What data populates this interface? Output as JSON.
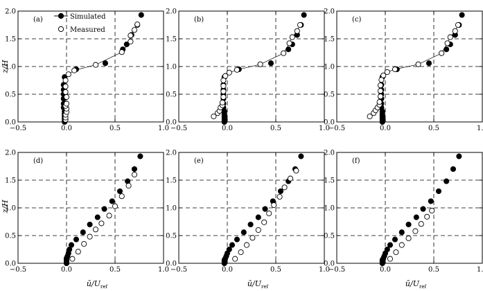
{
  "figure": {
    "ylabel": "z/H",
    "xlabel_main": "ū/U",
    "xlabel_sub": "ref",
    "legend": {
      "simulated": "Simulated",
      "measured": "Measured"
    }
  },
  "axes": {
    "xlim": [
      -0.5,
      1.0
    ],
    "ylim": [
      0.0,
      2.0
    ],
    "xticks": [
      -0.5,
      0.0,
      0.5,
      1.0
    ],
    "yticks": [
      0.0,
      0.5,
      1.0,
      1.5,
      2.0
    ],
    "xtick_labels": [
      "−0.5",
      "0.0",
      "0.5",
      "1.0"
    ],
    "ytick_labels": [
      "0.0",
      "0.5",
      "1.0",
      "1.5",
      "2.0"
    ],
    "grid": "dashed at x=0, x=0.5, y=0.5, y=1.0, y=1.5"
  },
  "chart_data": [
    {
      "type": "scatter",
      "panel": "(a)",
      "series": [
        {
          "name": "Simulated",
          "marker": "filled-circle",
          "line": "none",
          "x": [
            -0.02,
            -0.02,
            -0.02,
            -0.02,
            -0.02,
            -0.02,
            -0.02,
            -0.03,
            -0.03,
            -0.03,
            -0.03,
            -0.03,
            -0.03,
            -0.02,
            0.1,
            0.4,
            0.58,
            0.62,
            0.67,
            0.73,
            0.77
          ],
          "y": [
            0.0,
            0.03,
            0.06,
            0.09,
            0.12,
            0.15,
            0.19,
            0.26,
            0.33,
            0.42,
            0.5,
            0.58,
            0.67,
            0.81,
            0.95,
            1.06,
            1.31,
            1.4,
            1.57,
            1.75,
            1.93
          ]
        },
        {
          "name": "Measured",
          "marker": "open-circle",
          "line": "thin connecting line",
          "x": [
            -0.01,
            -0.01,
            -0.01,
            0.0,
            0.0,
            -0.01,
            0.0,
            0.0,
            -0.01,
            -0.01,
            -0.01,
            0.02,
            0.08,
            0.3,
            0.57,
            0.66,
            0.66,
            0.7,
            0.73
          ],
          "y": [
            0.04,
            0.08,
            0.13,
            0.18,
            0.24,
            0.29,
            0.33,
            0.45,
            0.54,
            0.64,
            0.75,
            0.86,
            0.93,
            1.03,
            1.26,
            1.45,
            1.56,
            1.66,
            1.76
          ]
        }
      ]
    },
    {
      "type": "scatter",
      "panel": "(b)",
      "series": [
        {
          "name": "Simulated",
          "marker": "filled-circle",
          "line": "none",
          "x": [
            -0.03,
            -0.03,
            -0.03,
            -0.03,
            -0.03,
            -0.03,
            -0.03,
            -0.04,
            -0.04,
            -0.04,
            -0.04,
            -0.04,
            -0.04,
            -0.03,
            0.12,
            0.45,
            0.63,
            0.67,
            0.72,
            0.76,
            0.79
          ],
          "y": [
            0.0,
            0.03,
            0.06,
            0.09,
            0.12,
            0.15,
            0.19,
            0.26,
            0.33,
            0.42,
            0.5,
            0.58,
            0.67,
            0.81,
            0.95,
            1.06,
            1.31,
            1.4,
            1.57,
            1.75,
            1.93
          ]
        },
        {
          "name": "Measured",
          "marker": "open-circle",
          "line": "thin connecting line",
          "x": [
            -0.14,
            -0.1,
            -0.08,
            -0.07,
            -0.05,
            -0.05,
            -0.04,
            -0.04,
            -0.04,
            -0.04,
            -0.02,
            0.02,
            0.1,
            0.34,
            0.58,
            0.64,
            0.67,
            0.72,
            0.75
          ],
          "y": [
            0.1,
            0.16,
            0.2,
            0.26,
            0.3,
            0.35,
            0.45,
            0.55,
            0.65,
            0.75,
            0.83,
            0.89,
            0.94,
            1.04,
            1.24,
            1.42,
            1.53,
            1.64,
            1.75
          ]
        }
      ]
    },
    {
      "type": "scatter",
      "panel": "(c)",
      "series": [
        {
          "name": "Simulated",
          "marker": "filled-circle",
          "line": "none",
          "x": [
            -0.03,
            -0.03,
            -0.03,
            -0.03,
            -0.03,
            -0.03,
            -0.03,
            -0.04,
            -0.04,
            -0.04,
            -0.04,
            -0.04,
            -0.04,
            -0.03,
            0.12,
            0.45,
            0.63,
            0.67,
            0.72,
            0.76,
            0.79
          ],
          "y": [
            0.0,
            0.03,
            0.06,
            0.09,
            0.12,
            0.15,
            0.19,
            0.26,
            0.33,
            0.42,
            0.5,
            0.58,
            0.67,
            0.81,
            0.95,
            1.06,
            1.31,
            1.4,
            1.57,
            1.75,
            1.93
          ]
        },
        {
          "name": "Measured",
          "marker": "open-circle",
          "line": "thin connecting line",
          "x": [
            -0.16,
            -0.12,
            -0.1,
            -0.08,
            -0.06,
            -0.06,
            -0.05,
            -0.05,
            -0.05,
            -0.04,
            -0.02,
            0.02,
            0.1,
            0.34,
            0.58,
            0.64,
            0.67,
            0.72,
            0.75
          ],
          "y": [
            0.1,
            0.16,
            0.21,
            0.26,
            0.31,
            0.36,
            0.46,
            0.56,
            0.66,
            0.76,
            0.84,
            0.9,
            0.95,
            1.04,
            1.24,
            1.42,
            1.53,
            1.64,
            1.75
          ]
        }
      ]
    },
    {
      "type": "scatter",
      "panel": "(d)",
      "series": [
        {
          "name": "Simulated",
          "marker": "filled-circle",
          "line": "none",
          "x": [
            0.0,
            0.0,
            0.0,
            0.0,
            0.01,
            0.02,
            0.03,
            0.05,
            0.1,
            0.17,
            0.24,
            0.32,
            0.39,
            0.47,
            0.55,
            0.63,
            0.7,
            0.76
          ],
          "y": [
            0.0,
            0.03,
            0.06,
            0.09,
            0.13,
            0.18,
            0.25,
            0.33,
            0.43,
            0.56,
            0.7,
            0.83,
            0.98,
            1.12,
            1.3,
            1.48,
            1.7,
            1.93
          ]
        },
        {
          "name": "Measured",
          "marker": "open-circle",
          "line": "none",
          "x": [
            0.06,
            0.12,
            0.18,
            0.24,
            0.3,
            0.36,
            0.44,
            0.5,
            0.57,
            0.64,
            0.7
          ],
          "y": [
            0.08,
            0.21,
            0.35,
            0.48,
            0.61,
            0.72,
            0.86,
            1.03,
            1.21,
            1.4,
            1.6
          ]
        }
      ]
    },
    {
      "type": "scatter",
      "panel": "(e)",
      "series": [
        {
          "name": "Simulated",
          "marker": "filled-circle",
          "line": "none",
          "x": [
            -0.03,
            -0.03,
            -0.03,
            -0.02,
            -0.01,
            0.0,
            0.02,
            0.05,
            0.1,
            0.17,
            0.24,
            0.32,
            0.39,
            0.47,
            0.55,
            0.63,
            0.7,
            0.76
          ],
          "y": [
            0.0,
            0.03,
            0.06,
            0.09,
            0.13,
            0.18,
            0.25,
            0.33,
            0.43,
            0.56,
            0.7,
            0.83,
            0.98,
            1.12,
            1.3,
            1.48,
            1.7,
            1.93
          ]
        },
        {
          "name": "Measured",
          "marker": "open-circle",
          "line": "none",
          "x": [
            0.08,
            0.14,
            0.2,
            0.26,
            0.32,
            0.38,
            0.43,
            0.48,
            0.54,
            0.59,
            0.65,
            0.71
          ],
          "y": [
            0.08,
            0.2,
            0.33,
            0.46,
            0.6,
            0.74,
            0.9,
            1.05,
            1.2,
            1.37,
            1.53,
            1.67
          ]
        }
      ]
    },
    {
      "type": "scatter",
      "panel": "(f)",
      "series": [
        {
          "name": "Simulated",
          "marker": "filled-circle",
          "line": "none",
          "x": [
            -0.03,
            -0.03,
            -0.03,
            -0.02,
            -0.01,
            0.0,
            0.02,
            0.05,
            0.1,
            0.17,
            0.24,
            0.32,
            0.39,
            0.47,
            0.55,
            0.63,
            0.7,
            0.76
          ],
          "y": [
            0.0,
            0.03,
            0.06,
            0.09,
            0.13,
            0.18,
            0.25,
            0.33,
            0.43,
            0.56,
            0.7,
            0.83,
            0.98,
            1.12,
            1.3,
            1.48,
            1.7,
            1.93
          ]
        },
        {
          "name": "Measured",
          "marker": "open-circle",
          "line": "none",
          "x": [
            0.05,
            0.11,
            0.17,
            0.24,
            0.31,
            0.37,
            0.43,
            0.48
          ],
          "y": [
            0.08,
            0.2,
            0.33,
            0.45,
            0.58,
            0.71,
            0.84,
            0.95
          ]
        }
      ]
    }
  ]
}
